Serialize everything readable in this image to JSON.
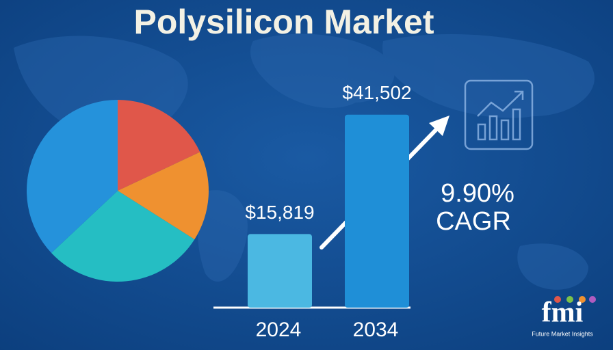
{
  "title": "Polysilicon Market",
  "chart_data": [
    {
      "type": "pie",
      "values": [
        18,
        16,
        29,
        37
      ],
      "colors": [
        "#e0574a",
        "#ef9130",
        "#25bec3",
        "#2592db"
      ]
    },
    {
      "type": "bar",
      "categories": [
        "2024",
        "2034"
      ],
      "values": [
        15819,
        41502
      ],
      "value_labels": [
        "$15,819",
        "$41,502"
      ],
      "colors": [
        "#4bb8e2",
        "#1f8fd7"
      ],
      "ylim": [
        0,
        45000
      ],
      "annotation": {
        "value": 9.9,
        "label": "9.90%"
      },
      "annotation_caption": "CAGR"
    }
  ],
  "logo": {
    "mark": "fmi",
    "name": "Future Market Insights"
  }
}
